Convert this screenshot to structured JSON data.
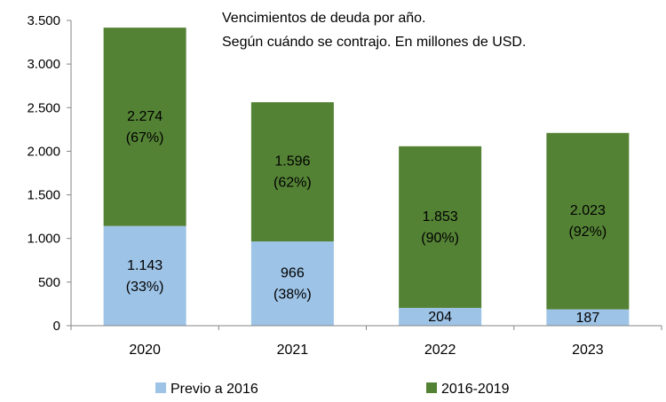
{
  "chart_data": {
    "type": "bar",
    "stacked": true,
    "title": "Vencimientos de deuda por año.",
    "subtitle": "Según cuándo se contrajo. En millones de USD.",
    "categories": [
      "2020",
      "2021",
      "2022",
      "2023"
    ],
    "series": [
      {
        "name": "Previo a 2016",
        "color": "#9dc3e6",
        "values": [
          1143,
          966,
          204,
          187
        ],
        "labels": [
          [
            "1.143",
            "(33%)"
          ],
          [
            "966",
            "(38%)"
          ],
          [
            "204"
          ],
          [
            "187"
          ]
        ]
      },
      {
        "name": "2016-2019",
        "color": "#548235",
        "values": [
          2274,
          1596,
          1853,
          2023
        ],
        "labels": [
          [
            "2.274",
            "(67%)"
          ],
          [
            "1.596",
            "(62%)"
          ],
          [
            "1.853",
            "(90%)"
          ],
          [
            "2.023",
            "(92%)"
          ]
        ]
      }
    ],
    "ylim": [
      0,
      3500
    ],
    "yticks": [
      0,
      500,
      1000,
      1500,
      2000,
      2500,
      3000,
      3500
    ],
    "ytick_labels": [
      "0",
      "500",
      "1.000",
      "1.500",
      "2.000",
      "2.500",
      "3.000",
      "3.500"
    ],
    "grid": false,
    "legend_position": "bottom"
  }
}
